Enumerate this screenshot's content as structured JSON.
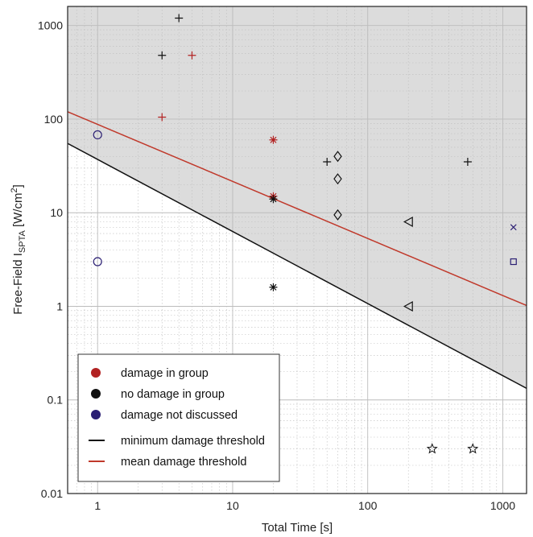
{
  "chart_data": {
    "type": "scatter",
    "xscale": "log",
    "yscale": "log",
    "xlim": [
      0.6,
      1500
    ],
    "ylim": [
      0.01,
      1600
    ],
    "grid": true,
    "xlabel": "Total Time [s]",
    "ylabel": {
      "prefix": "Free-Field I",
      "subscript": "SPTA",
      "unit_open": " [W/cm",
      "superscript": "2",
      "unit_close": "]"
    },
    "x_ticks": [
      {
        "value": 1,
        "label": "1"
      },
      {
        "value": 10,
        "label": "10"
      },
      {
        "value": 100,
        "label": "100"
      },
      {
        "value": 1000,
        "label": "1000"
      }
    ],
    "y_ticks": [
      {
        "value": 0.01,
        "label": "0.01"
      },
      {
        "value": 0.1,
        "label": "0.1"
      },
      {
        "value": 1,
        "label": "1"
      },
      {
        "value": 10,
        "label": "10"
      },
      {
        "value": 100,
        "label": "100"
      },
      {
        "value": 1000,
        "label": "1000"
      }
    ],
    "colors": {
      "damage": "#b22222",
      "no_damage": "#111111",
      "not_discussed": "#2a1e73",
      "min_line": "#111111",
      "mean_line": "#c0392b",
      "shade": "#dcdcdc",
      "grid": "#bcbcbc"
    },
    "lines": [
      {
        "key": "min",
        "x": [
          0.6,
          1500
        ],
        "y": [
          55,
          0.133
        ]
      },
      {
        "key": "mean",
        "x": [
          0.6,
          1500
        ],
        "y": [
          120,
          1.02
        ]
      }
    ],
    "shaded_region": "above minimum damage threshold",
    "points": [
      {
        "x": 4,
        "y": 1200,
        "marker": "plus",
        "group": "no_damage"
      },
      {
        "x": 3,
        "y": 480,
        "marker": "plus",
        "group": "no_damage"
      },
      {
        "x": 5,
        "y": 480,
        "marker": "plus",
        "group": "damage"
      },
      {
        "x": 3,
        "y": 105,
        "marker": "plus",
        "group": "damage"
      },
      {
        "x": 1,
        "y": 68,
        "marker": "circle",
        "group": "not_discussed"
      },
      {
        "x": 1,
        "y": 3,
        "marker": "circle",
        "group": "not_discussed"
      },
      {
        "x": 20,
        "y": 60,
        "marker": "asterisk",
        "group": "damage"
      },
      {
        "x": 20,
        "y": 15,
        "marker": "asterisk",
        "group": "damage"
      },
      {
        "x": 20,
        "y": 14,
        "marker": "asterisk",
        "group": "no_damage"
      },
      {
        "x": 20,
        "y": 1.6,
        "marker": "asterisk",
        "group": "no_damage"
      },
      {
        "x": 50,
        "y": 35,
        "marker": "plus",
        "group": "no_damage"
      },
      {
        "x": 60,
        "y": 40,
        "marker": "diamond",
        "group": "no_damage"
      },
      {
        "x": 60,
        "y": 23,
        "marker": "diamond",
        "group": "no_damage"
      },
      {
        "x": 60,
        "y": 9.5,
        "marker": "diamond",
        "group": "no_damage"
      },
      {
        "x": 200,
        "y": 8,
        "marker": "triangle-left",
        "group": "no_damage"
      },
      {
        "x": 200,
        "y": 1,
        "marker": "triangle-left",
        "group": "no_damage"
      },
      {
        "x": 550,
        "y": 35,
        "marker": "plus",
        "group": "no_damage"
      },
      {
        "x": 1200,
        "y": 7,
        "marker": "cross",
        "group": "not_discussed"
      },
      {
        "x": 1200,
        "y": 3,
        "marker": "square",
        "group": "not_discussed"
      },
      {
        "x": 300,
        "y": 0.03,
        "marker": "star",
        "group": "no_damage"
      },
      {
        "x": 600,
        "y": 0.03,
        "marker": "star",
        "group": "no_damage"
      }
    ],
    "legend": {
      "placement": "bottom-left",
      "entries": [
        {
          "label": "damage in group",
          "symbol": "dot",
          "color_key": "damage"
        },
        {
          "label": "no damage in group",
          "symbol": "dot",
          "color_key": "no_damage"
        },
        {
          "label": "damage not discussed",
          "symbol": "dot",
          "color_key": "not_discussed"
        },
        {
          "label": "minimum damage threshold",
          "symbol": "line",
          "color_key": "min_line"
        },
        {
          "label": "mean damage threshold",
          "symbol": "line",
          "color_key": "mean_line"
        }
      ]
    }
  }
}
